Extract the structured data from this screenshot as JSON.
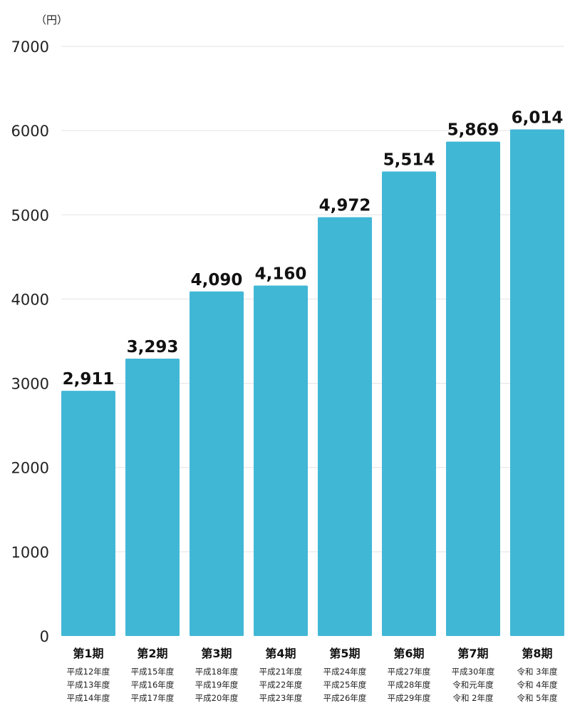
{
  "chart_data": {
    "type": "bar",
    "unit_label": "（円）",
    "y_ticks": [
      "7000",
      "6000",
      "5000",
      "4000",
      "3000",
      "2000",
      "1000",
      "0"
    ],
    "ylim": [
      0,
      7000
    ],
    "grid": true,
    "bar_color": "#41b7d6",
    "categories": [
      "第1期",
      "第2期",
      "第3期",
      "第4期",
      "第5期",
      "第6期",
      "第7期",
      "第8期"
    ],
    "values": [
      2911,
      3293,
      4090,
      4160,
      4972,
      5514,
      5869,
      6014
    ],
    "value_labels": [
      "2,911",
      "3,293",
      "4,090",
      "4,160",
      "4,972",
      "5,514",
      "5,869",
      "6,014"
    ],
    "sublabels": [
      [
        "平成12年度",
        "平成13年度",
        "平成14年度"
      ],
      [
        "平成15年度",
        "平成16年度",
        "平成17年度"
      ],
      [
        "平成18年度",
        "平成19年度",
        "平成20年度"
      ],
      [
        "平成21年度",
        "平成22年度",
        "平成23年度"
      ],
      [
        "平成24年度",
        "平成25年度",
        "平成26年度"
      ],
      [
        "平成27年度",
        "平成28年度",
        "平成29年度"
      ],
      [
        "平成30年度",
        "令和元年度",
        "令和 2年度"
      ],
      [
        "令和 3年度",
        "令和 4年度",
        "令和 5年度"
      ]
    ]
  }
}
